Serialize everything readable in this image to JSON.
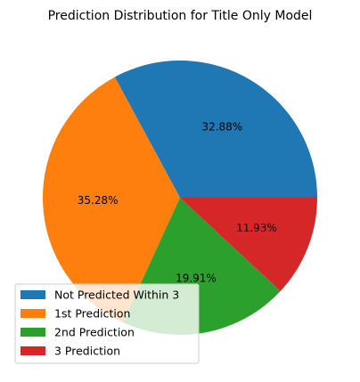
{
  "chart_data": {
    "type": "pie",
    "title": "Prediction Distribution for Title Only Model",
    "categories": [
      "Not Predicted Within 3",
      "1st Prediction",
      "2nd Prediction",
      "3 Prediction"
    ],
    "values": [
      32.88,
      35.28,
      19.91,
      11.93
    ],
    "value_labels": [
      "32.88%",
      "35.28%",
      "19.91%",
      "11.93%"
    ],
    "colors": [
      "#1f77b4",
      "#ff7f0e",
      "#2ca02c",
      "#d62728"
    ],
    "start_angle": 0,
    "direction": "counterclockwise",
    "legend": "lower-left"
  }
}
